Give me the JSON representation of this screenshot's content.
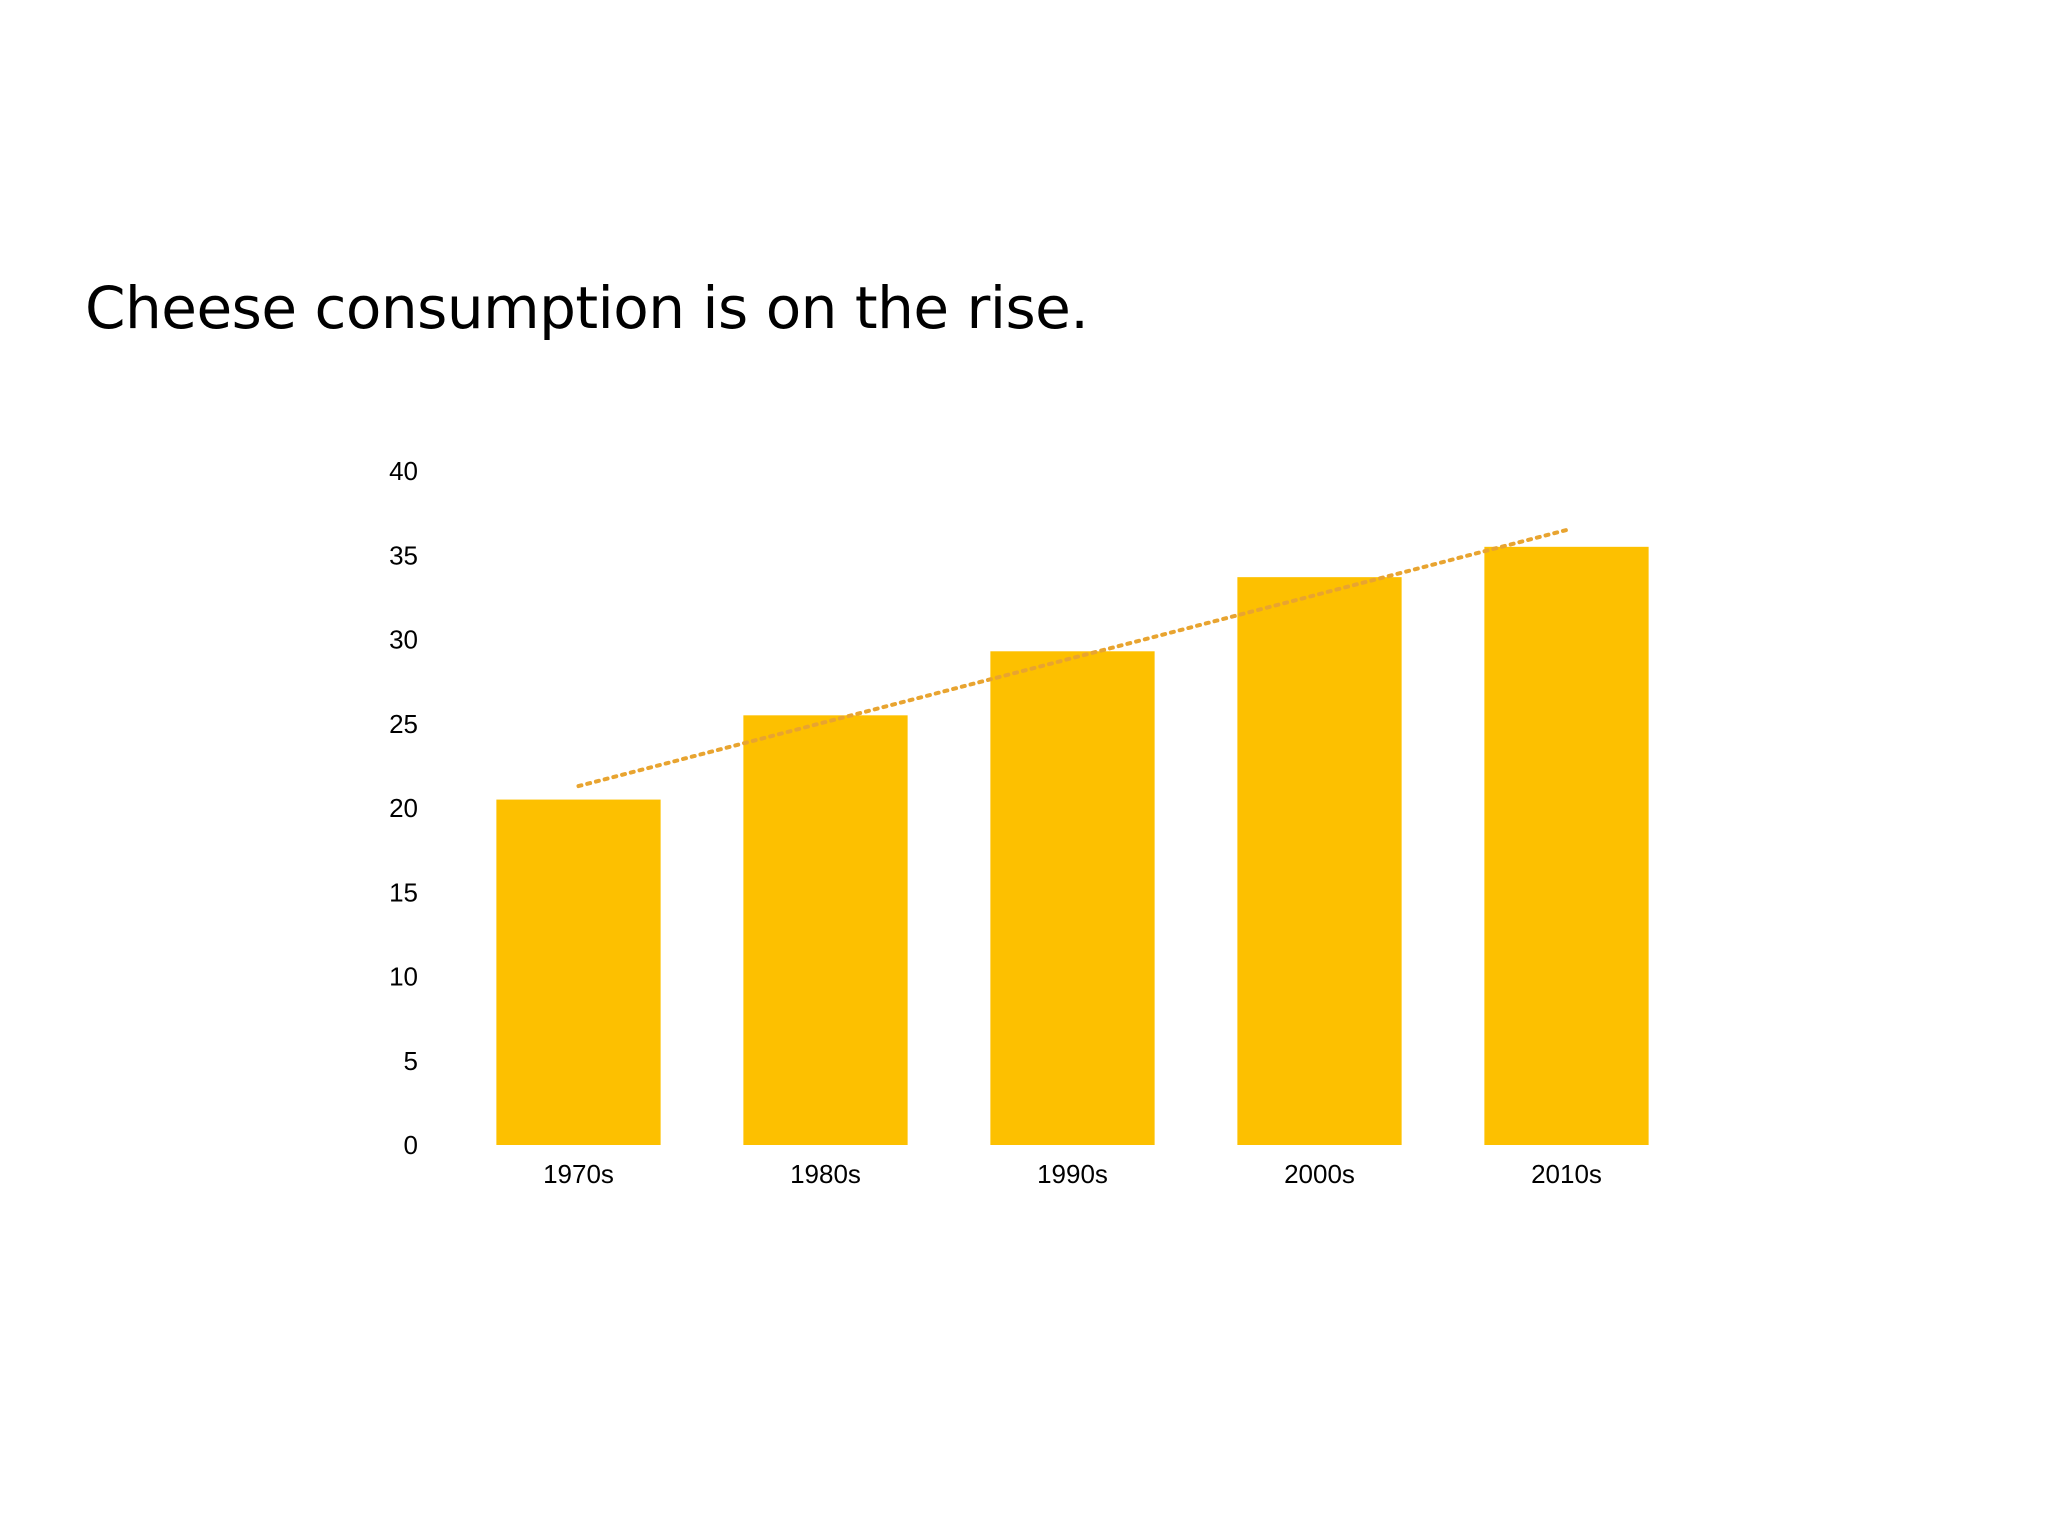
{
  "slide": {
    "title": "Cheese consumption is on the rise."
  },
  "chart_data": {
    "type": "bar",
    "categories": [
      "1970s",
      "1980s",
      "1990s",
      "2000s",
      "2010s"
    ],
    "values": [
      20.5,
      25.5,
      29.3,
      33.7,
      35.5
    ],
    "ylim": [
      0,
      40
    ],
    "yticks": [
      0,
      5,
      10,
      15,
      20,
      25,
      30,
      35,
      40
    ],
    "grid": false,
    "legend": "none",
    "trendline": {
      "type": "linear",
      "style": "dotted",
      "start": 21.3,
      "end": 36.5
    },
    "colors": {
      "bar": "#FDC000",
      "trendline": "#E8A430",
      "text": "#000000"
    }
  }
}
